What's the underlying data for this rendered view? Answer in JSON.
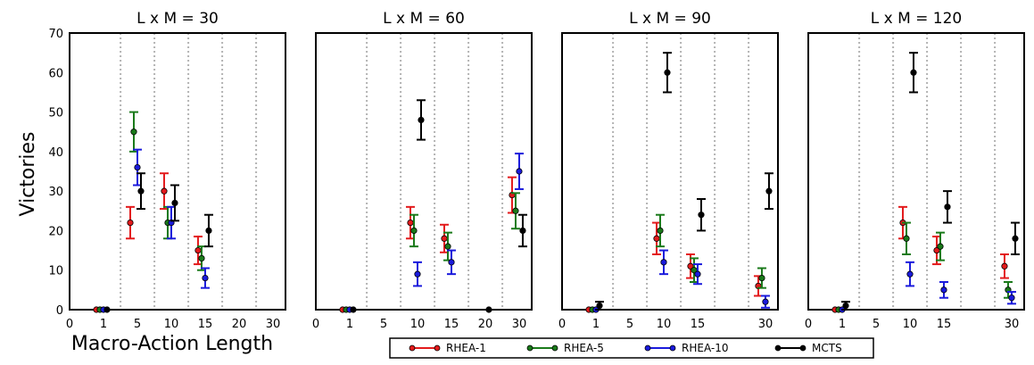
{
  "chart_data": {
    "type": "scatter",
    "ylabel": "Victories",
    "xlabel": "Macro-Action Length",
    "ylim": [
      0,
      70
    ],
    "yticks": [
      0,
      10,
      20,
      30,
      40,
      50,
      60,
      70
    ],
    "xticks": [
      0,
      1,
      5,
      10,
      15,
      20,
      30
    ],
    "panel_x_ticks": [
      [
        0,
        1,
        5,
        10,
        15,
        20,
        30
      ],
      [
        0,
        1,
        5,
        10,
        15,
        20,
        30
      ],
      [
        0,
        1,
        5,
        10,
        15,
        30
      ],
      [
        0,
        1,
        5,
        10,
        15,
        30
      ]
    ],
    "categories": [
      1,
      5,
      10,
      15,
      20,
      30
    ],
    "legend": [
      "RHEA-1",
      "RHEA-5",
      "RHEA-10",
      "MCTS"
    ],
    "legend_position": "bottom",
    "grid": "vertical dotted",
    "colors": {
      "RHEA-1": "#e31a1c",
      "RHEA-5": "#1a7a1a",
      "RHEA-10": "#1a1adc",
      "MCTS": "#000000"
    },
    "panels": [
      {
        "title": "L x M = 30",
        "series": [
          {
            "name": "RHEA-1",
            "x": [
              1,
              5,
              10,
              15
            ],
            "y": [
              0,
              22,
              30,
              15
            ],
            "err": [
              0,
              4,
              4.5,
              3.5
            ]
          },
          {
            "name": "RHEA-5",
            "x": [
              1,
              5,
              10,
              15
            ],
            "y": [
              0,
              45,
              22,
              13
            ],
            "err": [
              0,
              5,
              4,
              3
            ]
          },
          {
            "name": "RHEA-10",
            "x": [
              1,
              5,
              10,
              15
            ],
            "y": [
              0,
              36,
              22,
              8
            ],
            "err": [
              0,
              4.5,
              4,
              2.5
            ]
          },
          {
            "name": "MCTS",
            "x": [
              1,
              5,
              10,
              15
            ],
            "y": [
              0,
              30,
              27,
              20
            ],
            "err": [
              0,
              4.5,
              4.5,
              4
            ]
          }
        ]
      },
      {
        "title": "L x M = 60",
        "series": [
          {
            "name": "RHEA-1",
            "x": [
              1,
              10,
              15,
              30
            ],
            "y": [
              0,
              22,
              18,
              29
            ],
            "err": [
              0,
              4,
              3.5,
              4.5
            ]
          },
          {
            "name": "RHEA-5",
            "x": [
              1,
              10,
              15,
              30
            ],
            "y": [
              0,
              20,
              16,
              25
            ],
            "err": [
              0,
              4,
              3.5,
              4.5
            ]
          },
          {
            "name": "RHEA-10",
            "x": [
              1,
              10,
              15,
              30
            ],
            "y": [
              0,
              9,
              12,
              35
            ],
            "err": [
              0,
              3,
              3,
              4.5
            ]
          },
          {
            "name": "MCTS",
            "x": [
              1,
              10,
              20,
              30
            ],
            "y": [
              0,
              48,
              0,
              20
            ],
            "err": [
              0,
              5,
              0,
              4
            ]
          }
        ]
      },
      {
        "title": "L x M = 90",
        "series": [
          {
            "name": "RHEA-1",
            "x": [
              1,
              10,
              15,
              30
            ],
            "y": [
              0,
              18,
              11,
              6
            ],
            "err": [
              0,
              4,
              3,
              2.5
            ]
          },
          {
            "name": "RHEA-5",
            "x": [
              1,
              10,
              15,
              30
            ],
            "y": [
              0,
              20,
              10,
              8
            ],
            "err": [
              0,
              4,
              3,
              2.5
            ]
          },
          {
            "name": "RHEA-10",
            "x": [
              1,
              10,
              15,
              30
            ],
            "y": [
              0,
              12,
              9,
              2
            ],
            "err": [
              0,
              3,
              2.5,
              1.5
            ]
          },
          {
            "name": "MCTS",
            "x": [
              1,
              10,
              15,
              30
            ],
            "y": [
              1,
              60,
              24,
              30
            ],
            "err": [
              1,
              5,
              4,
              4.5
            ]
          }
        ]
      },
      {
        "title": "L x M = 120",
        "series": [
          {
            "name": "RHEA-1",
            "x": [
              1,
              10,
              15,
              30
            ],
            "y": [
              0,
              22,
              15,
              11
            ],
            "err": [
              0,
              4,
              3.5,
              3
            ]
          },
          {
            "name": "RHEA-5",
            "x": [
              1,
              10,
              15,
              30
            ],
            "y": [
              0,
              18,
              16,
              5
            ],
            "err": [
              0,
              4,
              3.5,
              2
            ]
          },
          {
            "name": "RHEA-10",
            "x": [
              1,
              10,
              15,
              30
            ],
            "y": [
              0,
              9,
              5,
              3
            ],
            "err": [
              0,
              3,
              2,
              1.5
            ]
          },
          {
            "name": "MCTS",
            "x": [
              1,
              10,
              15,
              30
            ],
            "y": [
              1,
              60,
              26,
              18
            ],
            "err": [
              1,
              5,
              4,
              4
            ]
          }
        ]
      }
    ]
  }
}
